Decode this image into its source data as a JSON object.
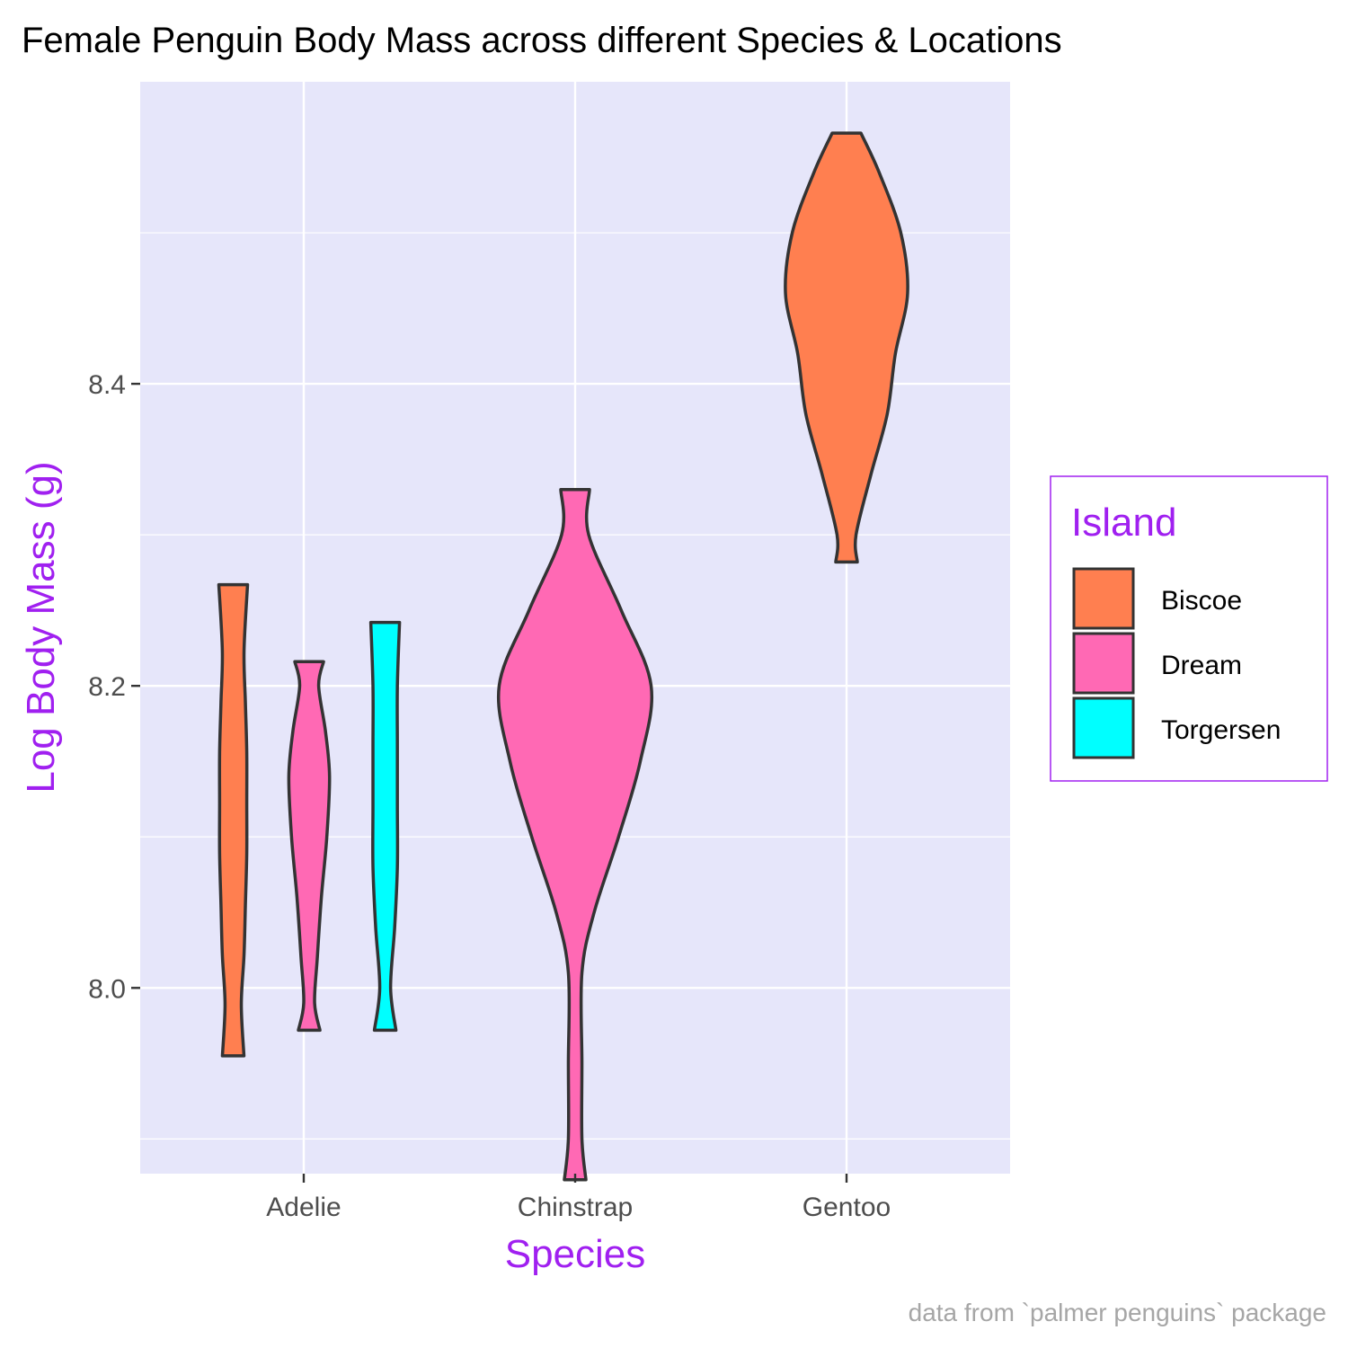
{
  "chart_data": {
    "type": "violin",
    "title": "Female Penguin Body Mass across different Species & Locations",
    "xlabel": "Species",
    "ylabel": "Log Body Mass (g)",
    "caption": "data from `palmer penguins` package",
    "categories": [
      "Adelie",
      "Chinstrap",
      "Gentoo"
    ],
    "y_ticks": [
      8.0,
      8.2,
      8.4
    ],
    "y_tick_labels": [
      "8.0",
      "8.2",
      "8.4"
    ],
    "ylim": [
      7.877,
      8.6
    ],
    "grid": true,
    "legend": {
      "title": "Island",
      "placement": "right",
      "entries": [
        {
          "label": "Biscoe",
          "color": "#FF7F50"
        },
        {
          "label": "Dream",
          "color": "#FF69B4"
        },
        {
          "label": "Torgersen",
          "color": "#00FFFF"
        }
      ]
    },
    "series": [
      {
        "species": "Adelie",
        "island": "Biscoe",
        "y_min": 7.955,
        "y_max": 8.267,
        "y_ext": [
          7.955,
          7.989,
          8.022,
          8.055,
          8.089,
          8.122,
          8.156,
          8.189,
          8.223,
          8.267
        ],
        "half_width": [
          0.0,
          0.06,
          0.08,
          0.09,
          0.1,
          0.1,
          0.1,
          0.09,
          0.08,
          0.0
        ]
      },
      {
        "species": "Adelie",
        "island": "Dream",
        "y_min": 7.972,
        "y_max": 8.216,
        "y_ext": [
          7.972,
          7.99,
          8.02,
          8.06,
          8.1,
          8.14,
          8.17,
          8.2,
          8.216
        ],
        "half_width": [
          0.0,
          0.04,
          0.06,
          0.09,
          0.13,
          0.15,
          0.12,
          0.07,
          0.0
        ]
      },
      {
        "species": "Adelie",
        "island": "Torgersen",
        "y_min": 7.972,
        "y_max": 8.242,
        "y_ext": [
          7.972,
          8.0,
          8.04,
          8.08,
          8.12,
          8.16,
          8.2,
          8.242
        ],
        "half_width": [
          0.0,
          0.04,
          0.07,
          0.09,
          0.09,
          0.09,
          0.09,
          0.0
        ]
      },
      {
        "species": "Chinstrap",
        "island": "Dream",
        "y_min": 7.873,
        "y_max": 8.33,
        "y_ext": [
          7.873,
          7.9,
          7.95,
          8.01,
          8.05,
          8.1,
          8.15,
          8.2,
          8.25,
          8.3,
          8.33
        ],
        "half_width": [
          0.0,
          0.05,
          0.05,
          0.05,
          0.14,
          0.32,
          0.48,
          0.56,
          0.34,
          0.1,
          0.0
        ]
      },
      {
        "species": "Gentoo",
        "island": "Biscoe",
        "y_min": 8.282,
        "y_max": 8.566,
        "y_ext": [
          8.282,
          8.3,
          8.34,
          8.38,
          8.42,
          8.46,
          8.5,
          8.54,
          8.566
        ],
        "half_width": [
          0.0,
          0.07,
          0.18,
          0.3,
          0.36,
          0.45,
          0.4,
          0.24,
          0.0
        ]
      }
    ]
  }
}
